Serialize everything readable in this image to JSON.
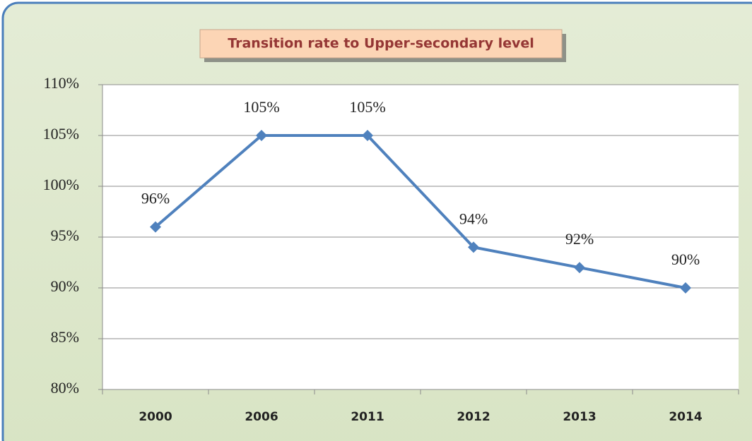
{
  "chart_data": {
    "type": "line",
    "title": "Transition rate to Upper-secondary level",
    "categories": [
      "2000",
      "2006",
      "2011",
      "2012",
      "2013",
      "2014"
    ],
    "series": [
      {
        "name": "Transition rate",
        "color": "#4f81bd",
        "values": [
          96,
          105,
          105,
          94,
          92,
          90
        ],
        "value_labels": [
          "96%",
          "105%",
          "105%",
          "94%",
          "92%",
          "90%"
        ]
      }
    ],
    "ylim": [
      80,
      110
    ],
    "yticks": [
      {
        "value": 80,
        "label": "80%"
      },
      {
        "value": 85,
        "label": "85%"
      },
      {
        "value": 90,
        "label": "90%"
      },
      {
        "value": 95,
        "label": "95%"
      },
      {
        "value": 100,
        "label": "100%"
      },
      {
        "value": 105,
        "label": "105%"
      },
      {
        "value": 110,
        "label": "110%"
      }
    ],
    "grid": true
  }
}
